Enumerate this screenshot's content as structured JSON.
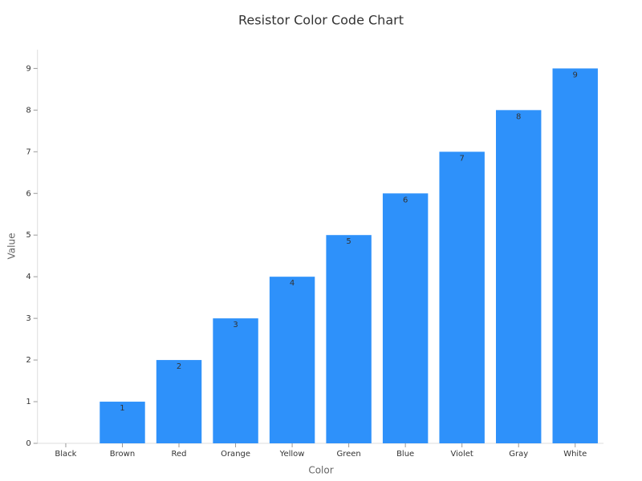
{
  "chart_data": {
    "type": "bar",
    "title": "Resistor Color Code Chart",
    "x_label": "Color",
    "y_label": "Value",
    "categories": [
      "Black",
      "Brown",
      "Red",
      "Orange",
      "Yellow",
      "Green",
      "Blue",
      "Violet",
      "Gray",
      "White"
    ],
    "values": [
      0,
      1,
      2,
      3,
      4,
      5,
      6,
      7,
      8,
      9
    ],
    "color": "#2e91fa",
    "ylim": [
      0,
      9.45
    ],
    "yticks": [
      0,
      1,
      2,
      3,
      4,
      5,
      6,
      7,
      8,
      9
    ]
  }
}
